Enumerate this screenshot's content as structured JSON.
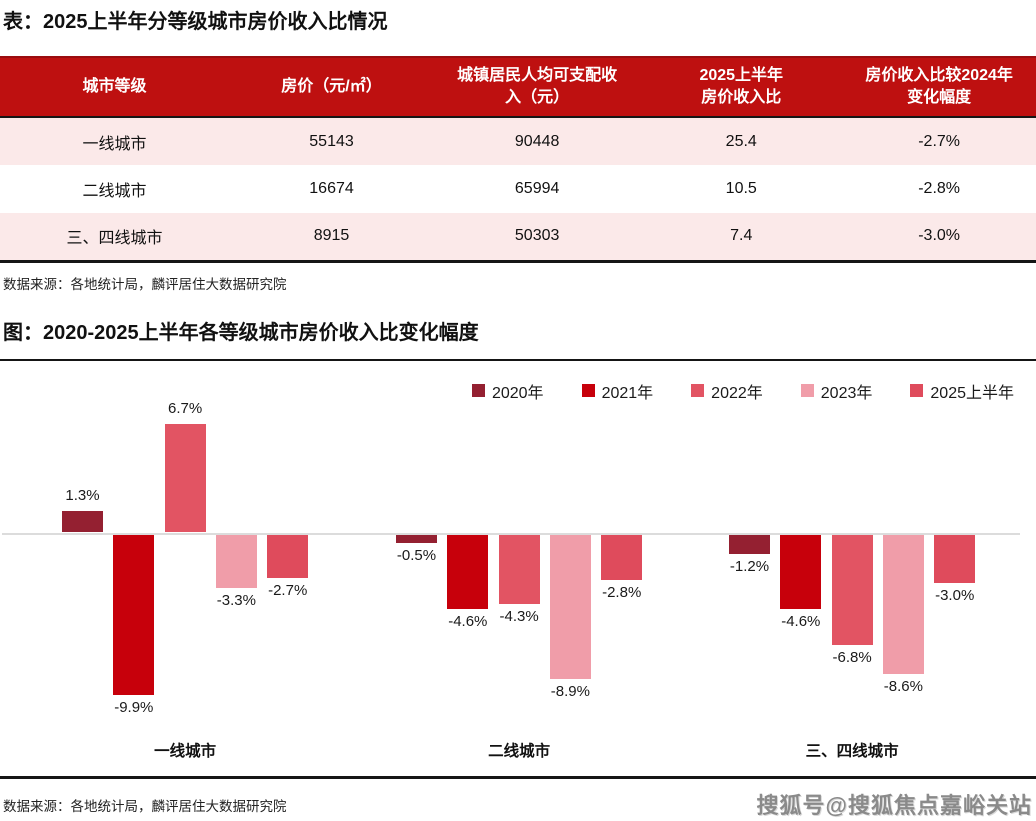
{
  "table_section": {
    "title": "表：2025上半年分等级城市房价收入比情况",
    "table": {
      "headers": [
        "城市等级",
        "房价（元/㎡）",
        "城镇居民人均可支配收\n入（元）",
        "2025上半年\n房价收入比",
        "房价收入比较2024年\n变化幅度"
      ],
      "rows": [
        [
          "一线城市",
          "55143",
          "90448",
          "25.4",
          "-2.7%"
        ],
        [
          "二线城市",
          "16674",
          "65994",
          "10.5",
          "-2.8%"
        ],
        [
          "三、四线城市",
          "8915",
          "50303",
          "7.4",
          "-3.0%"
        ]
      ]
    },
    "source": "数据来源：各地统计局，麟评居住大数据研究院"
  },
  "chart_section": {
    "title": "图：2020-2025上半年各等级城市房价收入比变化幅度",
    "source": "数据来源：各地统计局，麟评居住大数据研究院"
  },
  "chart_data": {
    "type": "bar",
    "title": "2020-2025上半年各等级城市房价收入比变化幅度",
    "categories": [
      "一线城市",
      "二线城市",
      "三、四线城市"
    ],
    "series": [
      {
        "name": "2020年",
        "color": "#942031",
        "values": [
          1.3,
          -0.5,
          -1.2
        ]
      },
      {
        "name": "2021年",
        "color": "#C7000B",
        "values": [
          -9.9,
          -4.6,
          -4.6
        ]
      },
      {
        "name": "2022年",
        "color": "#E25463",
        "values": [
          6.7,
          -4.3,
          -6.8
        ]
      },
      {
        "name": "2023年",
        "color": "#F09DA9",
        "values": [
          -3.3,
          -8.9,
          -8.6
        ]
      },
      {
        "name": "2025上半年",
        "color": "#DF4B5C",
        "values": [
          -2.7,
          -2.8,
          -3.0
        ]
      }
    ],
    "unit": "%",
    "value_label_format": "one-decimal-percent",
    "ylim": [
      -11,
      8
    ],
    "grid": false,
    "baseline": 0,
    "legend_position": "top-right"
  },
  "watermark": "搜狐号@搜狐焦点嘉峪关站",
  "colors": {
    "table_header_bg": "#BE1010",
    "table_row_pink": "#FBE9E9",
    "divider_black": "#151515",
    "zero_line_gray": "#DCDCDC",
    "watermark_gray": "#8a8a8a"
  }
}
